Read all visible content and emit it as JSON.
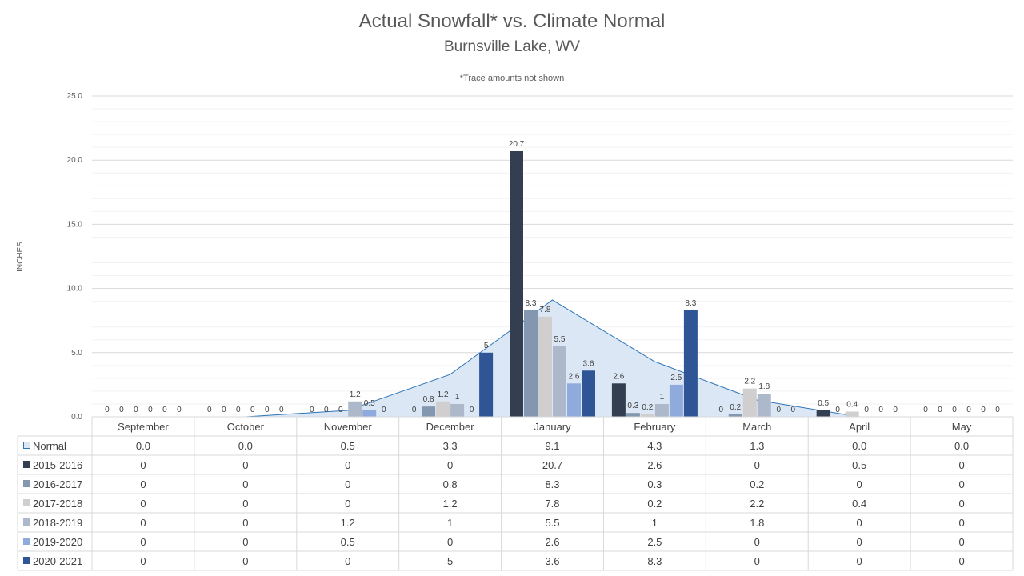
{
  "chart_data": {
    "type": "bar",
    "title": "Actual Snowfall* vs. Climate Normal",
    "subtitle": "Burnsville Lake, WV",
    "note": "*Trace amounts not shown",
    "ylabel": "INCHES",
    "ylim": [
      0,
      25
    ],
    "yticks": [
      "0.0",
      "5.0",
      "10.0",
      "15.0",
      "20.0",
      "25.0"
    ],
    "grid": true,
    "categories": [
      "September",
      "October",
      "November",
      "December",
      "January",
      "February",
      "March",
      "April",
      "May"
    ],
    "normal": {
      "name": "Normal",
      "type": "area",
      "color": "#dbe7f5",
      "line_color": "#2e75b6",
      "values": [
        0.0,
        0.0,
        0.5,
        3.3,
        9.1,
        4.3,
        1.3,
        0.0,
        0.0
      ],
      "display": [
        "0.0",
        "0.0",
        "0.5",
        "3.3",
        "9.1",
        "4.3",
        "1.3",
        "0.0",
        "0.0"
      ]
    },
    "series": [
      {
        "name": "2015-2016",
        "color": "#333f50",
        "values": [
          0,
          0,
          0,
          0,
          20.7,
          2.6,
          0,
          0.5,
          0
        ],
        "display": [
          "0",
          "0",
          "0",
          "0",
          "20.7",
          "2.6",
          "0",
          "0.5",
          "0"
        ]
      },
      {
        "name": "2016-2017",
        "color": "#8497b0",
        "values": [
          0,
          0,
          0,
          0.8,
          8.3,
          0.3,
          0.2,
          0,
          0
        ],
        "display": [
          "0",
          "0",
          "0",
          "0.8",
          "8.3",
          "0.3",
          "0.2",
          "0",
          "0"
        ]
      },
      {
        "name": "2017-2018",
        "color": "#d0cece",
        "values": [
          0,
          0,
          0,
          1.2,
          7.8,
          0.2,
          2.2,
          0.4,
          0
        ],
        "display": [
          "0",
          "0",
          "0",
          "1.2",
          "7.8",
          "0.2",
          "2.2",
          "0.4",
          "0"
        ]
      },
      {
        "name": "2018-2019",
        "color": "#adb9ca",
        "values": [
          0,
          0,
          1.2,
          1,
          5.5,
          1,
          1.8,
          0,
          0
        ],
        "display": [
          "0",
          "0",
          "1.2",
          "1",
          "5.5",
          "1",
          "1.8",
          "0",
          "0"
        ]
      },
      {
        "name": "2019-2020",
        "color": "#8faadc",
        "values": [
          0,
          0,
          0.5,
          0,
          2.6,
          2.5,
          0,
          0,
          0
        ],
        "display": [
          "0",
          "0",
          "0.5",
          "0",
          "2.6",
          "2.5",
          "0",
          "0",
          "0"
        ]
      },
      {
        "name": "2020-2021",
        "color": "#2f5597",
        "values": [
          0,
          0,
          0,
          5,
          3.6,
          8.3,
          0,
          0,
          0
        ],
        "display": [
          "0",
          "0",
          "0",
          "5",
          "3.6",
          "8.3",
          "0",
          "0",
          "0"
        ]
      }
    ],
    "legend": "data-table"
  }
}
